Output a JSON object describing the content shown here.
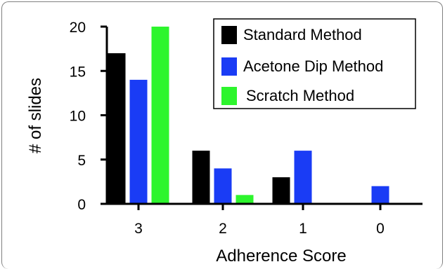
{
  "chart_data": {
    "type": "bar",
    "xlabel": "Adherence Score",
    "ylabel": "# of slides",
    "categories": [
      "3",
      "2",
      "1",
      "0"
    ],
    "series": [
      {
        "name": "Standard Method",
        "color": "#000000",
        "values": [
          17,
          6,
          3,
          0
        ]
      },
      {
        "name": "Acetone Dip Method",
        "color": "#1a3cf5",
        "values": [
          14,
          4,
          6,
          2
        ]
      },
      {
        "name": "Scratch Method",
        "color": "#2df52d",
        "values": [
          20,
          1,
          0,
          0
        ]
      }
    ],
    "ylim": [
      0,
      20
    ],
    "yticks": [
      0,
      5,
      10,
      15,
      20
    ],
    "legend_position": "top-right",
    "grid": false
  }
}
